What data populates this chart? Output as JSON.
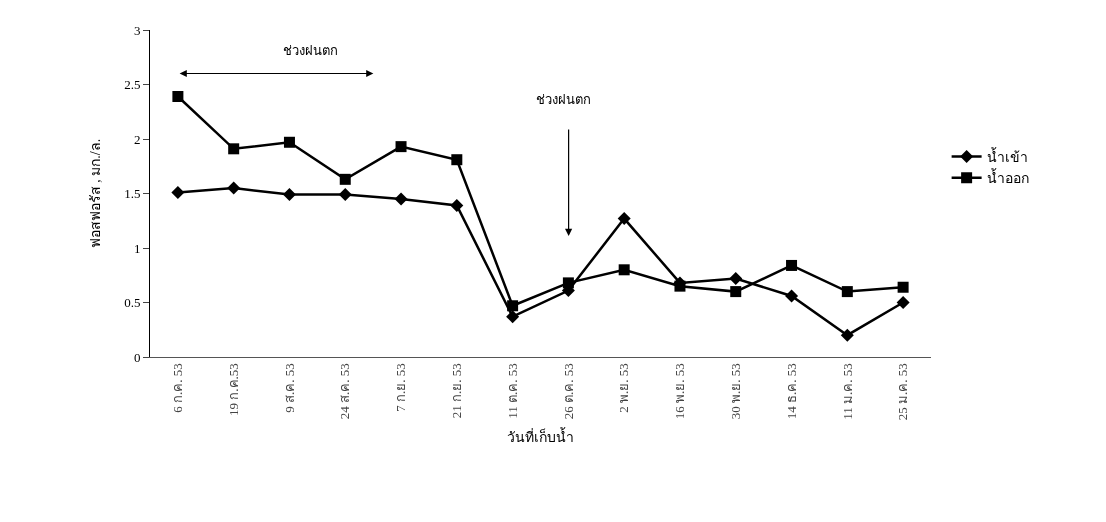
{
  "chart_data": {
    "type": "line",
    "xlabel": "วันที่เก็บน้ำ",
    "ylabel": "ฟอสฟอรัส , มก./ล.",
    "categories": [
      "6 ก.ค. 53",
      "19 ก.ค.53",
      "9 ส.ค. 53",
      "24 ส.ค. 53",
      "7 ก.ย. 53",
      "21 ก.ย. 53",
      "11 ต.ค. 53",
      "26 ต.ค. 53",
      "2 พ.ย. 53",
      "16 พ.ย. 53",
      "30 พ.ย. 53",
      "14 ธ.ค. 53",
      "11 ม.ค. 53",
      "25 ม.ค. 53"
    ],
    "series": [
      {
        "name": "น้ำเข้า",
        "color": "#000000",
        "marker": "diamond",
        "values": [
          1.51,
          1.55,
          1.49,
          1.49,
          1.45,
          1.39,
          0.37,
          0.61,
          1.27,
          0.68,
          0.72,
          0.56,
          0.2,
          0.5
        ]
      },
      {
        "name": "น้ำออก",
        "color": "#000000",
        "marker": "square",
        "values": [
          2.39,
          1.91,
          1.97,
          1.63,
          1.93,
          1.81,
          0.47,
          0.68,
          0.8,
          0.65,
          0.6,
          0.84,
          0.6,
          0.64
        ]
      }
    ],
    "annotations": [
      "ช่วงฝนตก",
      "ช่วงฝนตก"
    ],
    "ylim": [
      0,
      3
    ],
    "yticks": [
      0,
      0.5,
      1,
      1.5,
      2,
      2.5,
      3
    ],
    "grid": false,
    "legend": "right",
    "line_style": "solid"
  }
}
